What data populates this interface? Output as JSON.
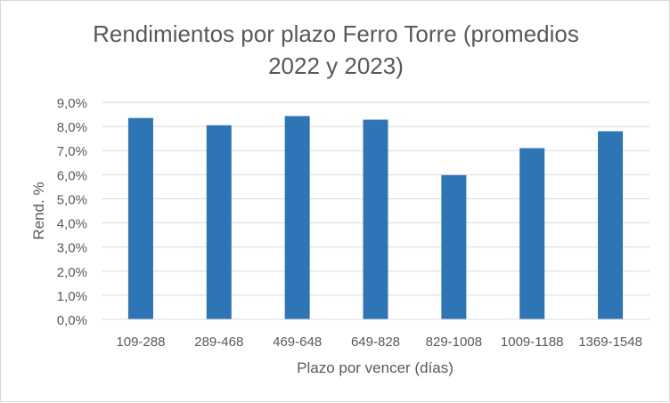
{
  "chart_data": {
    "type": "bar",
    "title_lines": [
      "Rendimientos por plazo Ferro Torre (promedios",
      "2022 y 2023)"
    ],
    "xlabel": "Plazo por vencer (días)",
    "ylabel": "Rend. %",
    "categories": [
      "109-288",
      "289-468",
      "469-648",
      "649-828",
      "829-1008",
      "1009-1188",
      "1369-1548"
    ],
    "values": [
      8.35,
      8.05,
      8.43,
      8.28,
      5.98,
      7.1,
      7.8
    ],
    "ylim": [
      0,
      9
    ],
    "yticks": [
      "0,0%",
      "1,0%",
      "2,0%",
      "3,0%",
      "4,0%",
      "5,0%",
      "6,0%",
      "7,0%",
      "8,0%",
      "9,0%"
    ],
    "grid": true,
    "legend": "none",
    "bar_color": "#2E75B6",
    "grid_color": "#d9d9d9",
    "text_color": "#595959"
  }
}
